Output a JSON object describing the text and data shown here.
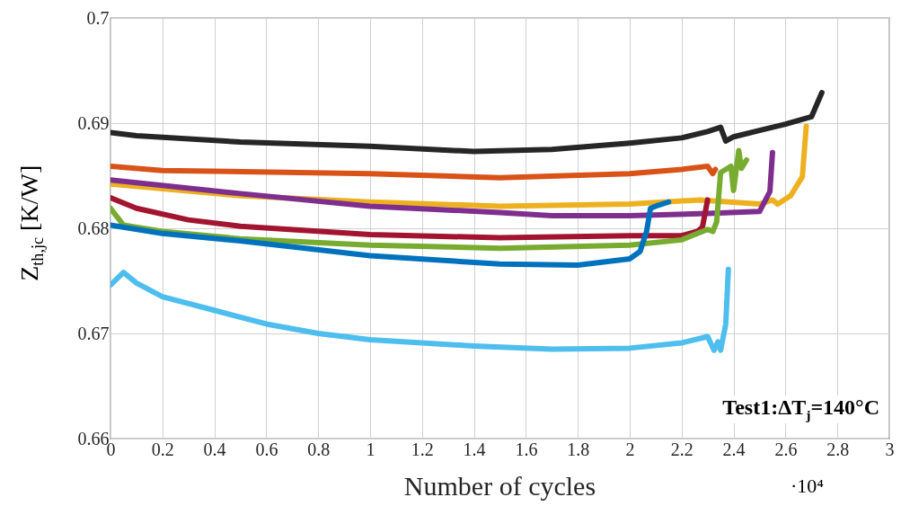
{
  "chart_data": {
    "type": "line",
    "xlabel": "Number of cycles",
    "ylabel": "Z$_{th,jc}$ [K/W]",
    "annotations": [
      "Test1:ΔT$_{j}$=140°C",
      "·10⁴"
    ],
    "xlim": [
      0,
      3
    ],
    "ylim": [
      0.66,
      0.7
    ],
    "xticks": [
      0,
      0.2,
      0.4,
      0.6,
      0.8,
      1,
      1.2,
      1.4,
      1.6,
      1.8,
      2,
      2.2,
      2.4,
      2.6,
      2.8,
      3
    ],
    "yticks": [
      0.66,
      0.67,
      0.68,
      0.69,
      0.7
    ],
    "grid": true,
    "marker": "none",
    "line_style": "solid",
    "series": [
      {
        "color": "#262626",
        "x": [
          0,
          0.1,
          0.5,
          1,
          1.4,
          1.7,
          2,
          2.2,
          2.3,
          2.35,
          2.37,
          2.4,
          2.5,
          2.6,
          2.7,
          2.74
        ],
        "values": [
          0.6891,
          0.6888,
          0.6882,
          0.6878,
          0.6873,
          0.6875,
          0.6881,
          0.6886,
          0.6892,
          0.6896,
          0.6883,
          0.6887,
          0.6893,
          0.6899,
          0.6906,
          0.6929
        ]
      },
      {
        "color": "#d95319",
        "x": [
          0,
          0.2,
          1,
          1.5,
          2,
          2.2,
          2.3,
          2.32,
          2.33
        ],
        "values": [
          0.6859,
          0.6855,
          0.6852,
          0.6848,
          0.6852,
          0.6856,
          0.6859,
          0.6852,
          0.6856
        ]
      },
      {
        "color": "#edb120",
        "x": [
          0,
          0.5,
          1,
          1.5,
          2,
          2.27,
          2.5,
          2.55,
          2.57,
          2.62,
          2.665,
          2.68
        ],
        "values": [
          0.6842,
          0.6831,
          0.6825,
          0.6821,
          0.6823,
          0.6827,
          0.6823,
          0.6827,
          0.6823,
          0.6831,
          0.6849,
          0.6897
        ]
      },
      {
        "color": "#7e2f8e",
        "x": [
          0,
          0.5,
          1,
          1.5,
          1.7,
          2,
          2.3,
          2.5,
          2.54,
          2.55
        ],
        "values": [
          0.6846,
          0.6833,
          0.6821,
          0.6815,
          0.6812,
          0.6812,
          0.6814,
          0.6816,
          0.6835,
          0.6872
        ]
      },
      {
        "color": "#a2142f",
        "x": [
          0,
          0.1,
          0.3,
          0.5,
          1,
          1.5,
          2,
          2.2,
          2.26,
          2.28,
          2.3
        ],
        "values": [
          0.6829,
          0.6819,
          0.6808,
          0.6802,
          0.6794,
          0.6791,
          0.6793,
          0.6793,
          0.6797,
          0.6801,
          0.6827
        ]
      },
      {
        "color": "#77ac30",
        "x": [
          0,
          0.05,
          0.2,
          0.5,
          1,
          1.5,
          2,
          2.2,
          2.3,
          2.32,
          2.335,
          2.35,
          2.39,
          2.4,
          2.42,
          2.43,
          2.45
        ],
        "values": [
          0.6819,
          0.6803,
          0.6797,
          0.679,
          0.6784,
          0.6781,
          0.6784,
          0.6789,
          0.6799,
          0.6797,
          0.6806,
          0.6853,
          0.6859,
          0.6836,
          0.6874,
          0.6857,
          0.6865
        ]
      },
      {
        "color": "#0072bd",
        "x": [
          0,
          0.2,
          0.5,
          1,
          1.5,
          1.8,
          2,
          2.04,
          2.065,
          2.08,
          2.11,
          2.15
        ],
        "values": [
          0.6803,
          0.6795,
          0.6788,
          0.6774,
          0.6766,
          0.6765,
          0.6771,
          0.6778,
          0.6797,
          0.6819,
          0.6822,
          0.6825
        ]
      },
      {
        "color": "#4dbeee",
        "x": [
          0,
          0.05,
          0.1,
          0.2,
          0.4,
          0.6,
          0.8,
          1,
          1.4,
          1.7,
          2,
          2.2,
          2.3,
          2.325,
          2.34,
          2.35,
          2.37,
          2.38
        ],
        "values": [
          0.6746,
          0.6758,
          0.6748,
          0.6735,
          0.6722,
          0.6709,
          0.67,
          0.6694,
          0.6688,
          0.6685,
          0.6686,
          0.6691,
          0.6697,
          0.6684,
          0.6692,
          0.6684,
          0.6709,
          0.6761
        ]
      }
    ]
  }
}
